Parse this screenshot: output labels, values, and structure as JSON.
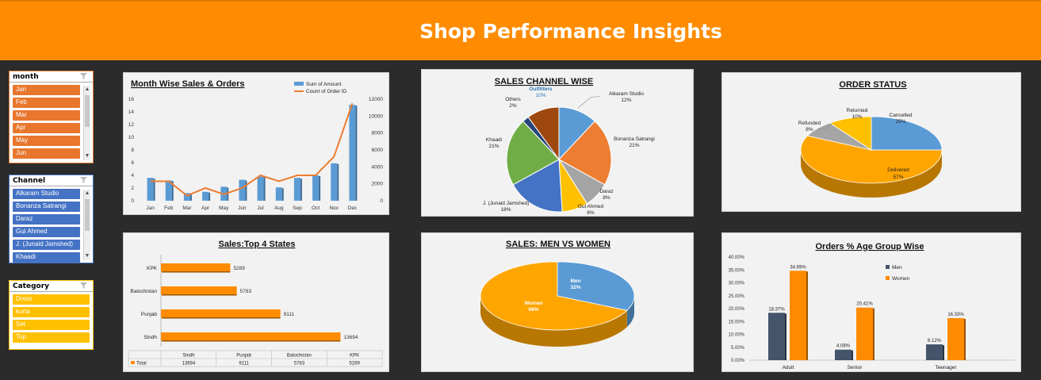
{
  "header": {
    "title": "Shop Performance Insights"
  },
  "slicers": [
    {
      "title": "month",
      "items": [
        "Jan",
        "Feb",
        "Mar",
        "Apr",
        "May",
        "Jun"
      ],
      "accent": "#e8762d",
      "border": "#e8762d"
    },
    {
      "title": "Channel",
      "items": [
        "Alkaram Studio",
        "Bonanza Satrangi",
        "Daraz",
        "Gul Ahmed",
        "J. (Junaid Jamshed)",
        "Khaadi"
      ],
      "accent": "#4472c4",
      "border": "#4472c4"
    },
    {
      "title": "Category",
      "items": [
        "Dress",
        "kurta",
        "Set",
        "Top"
      ],
      "accent": "#ffc000",
      "border": "#ffc000"
    }
  ],
  "chart_data": [
    {
      "type": "bar",
      "title": "Month Wise Sales & Orders",
      "categories": [
        "Jan",
        "Feb",
        "Mar",
        "Apr",
        "May",
        "Jun",
        "Jul",
        "Aug",
        "Sep",
        "Oct",
        "Nov",
        "Dec"
      ],
      "series": [
        {
          "name": "Sum of Amount",
          "type": "bar",
          "axis": "left",
          "color": "#5b9bd5",
          "values": [
            3.6,
            3.2,
            1.2,
            1.4,
            2.2,
            3.3,
            3.8,
            2.1,
            3.6,
            4.0,
            5.9,
            15.1
          ]
        },
        {
          "name": "Count of Order ID",
          "type": "line",
          "axis": "right",
          "color": "#ed7d31",
          "values": [
            2300,
            2300,
            600,
            1500,
            750,
            1500,
            3000,
            2300,
            3000,
            3000,
            5200,
            11500
          ]
        }
      ],
      "ylim": [
        0,
        16
      ],
      "yticks": [
        0,
        2,
        4,
        6,
        8,
        10,
        12,
        14,
        16
      ],
      "y2lim": [
        0,
        12000
      ],
      "y2ticks": [
        0,
        2000,
        4000,
        6000,
        8000,
        10000,
        12000
      ],
      "legend": "top-right"
    },
    {
      "type": "pie",
      "title": "SALES CHANNEL WISE",
      "slices": [
        {
          "label": "Alkaram Studio",
          "value": 12,
          "pct": "12%",
          "color": "#5b9bd5"
        },
        {
          "label": "Bonanza Satrangi",
          "value": 21,
          "pct": "21%",
          "color": "#ed7d31"
        },
        {
          "label": "Daraz",
          "value": 8,
          "pct": "8%",
          "color": "#a5a5a5"
        },
        {
          "label": "Gul Ahmed",
          "value": 8,
          "pct": "8%",
          "color": "#ffc000"
        },
        {
          "label": "J. (Junaid Jamshed)",
          "value": 18,
          "pct": "18%",
          "color": "#4472c4"
        },
        {
          "label": "Khaadi",
          "value": 21,
          "pct": "21%",
          "color": "#70ad47"
        },
        {
          "label": "Others",
          "value": 2,
          "pct": "2%",
          "color": "#264478"
        },
        {
          "label": "Outfitters",
          "value": 10,
          "pct": "10%",
          "color": "#9e480e"
        }
      ]
    },
    {
      "type": "pie",
      "title": "ORDER STATUS",
      "slices": [
        {
          "label": "Cancelled",
          "value": 25,
          "pct": "25%",
          "color": "#5b9bd5"
        },
        {
          "label": "Delivered",
          "value": 57,
          "pct": "57%",
          "color": "#ffa500"
        },
        {
          "label": "Refunded",
          "value": 8,
          "pct": "8%",
          "color": "#a5a5a5"
        },
        {
          "label": "Returned",
          "value": 10,
          "pct": "10%",
          "color": "#ffc000"
        }
      ]
    },
    {
      "type": "bar",
      "orientation": "horizontal",
      "title": "Sales:Top 4 States",
      "categories": [
        "KPK",
        "Balochistan",
        "Punjab",
        "Sindh"
      ],
      "values": [
        5289,
        5783,
        9111,
        13694
      ],
      "color": "#ff8c00",
      "xlim": [
        0,
        15000
      ],
      "table": {
        "series": "Total",
        "columns": [
          "Sindh",
          "Punjab",
          "Balochistan",
          "KPK"
        ],
        "values": [
          "13694",
          "9111",
          "5783",
          "5289"
        ]
      }
    },
    {
      "type": "pie",
      "title": "SALES: MEN VS WOMEN",
      "slices": [
        {
          "label": "Men",
          "value": 32,
          "pct": "32%",
          "color": "#5b9bd5"
        },
        {
          "label": "Women",
          "value": 68,
          "pct": "68%",
          "color": "#ffa500"
        }
      ]
    },
    {
      "type": "bar",
      "title": "Orders % Age Group Wise",
      "categories": [
        "Adult",
        "Senior",
        "Teenager"
      ],
      "series": [
        {
          "name": "Men",
          "color": "#44546a",
          "values": [
            18.37,
            4.08,
            6.12
          ],
          "labels": [
            "18.37%",
            "4.08%",
            "6.12%"
          ]
        },
        {
          "name": "Women",
          "color": "#ff8c00",
          "values": [
            34.69,
            20.41,
            16.33
          ],
          "labels": [
            "34.69%",
            "20.41%",
            "16.33%"
          ]
        }
      ],
      "ylim": [
        0,
        40
      ],
      "yticks": [
        "0.00%",
        "5.00%",
        "10.00%",
        "15.00%",
        "20.00%",
        "25.00%",
        "30.00%",
        "35.00%",
        "40.00%"
      ],
      "legend": "top-right"
    }
  ]
}
